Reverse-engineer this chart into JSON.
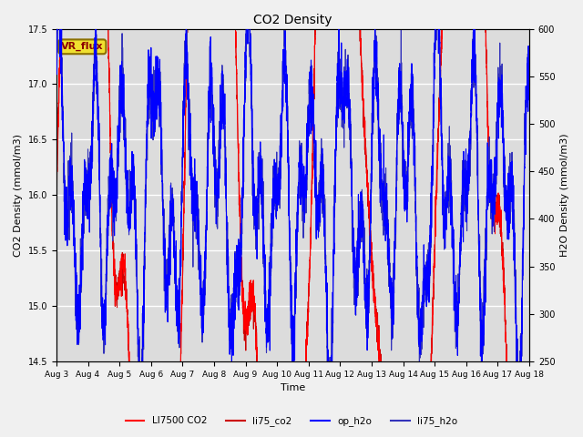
{
  "title": "CO2 Density",
  "xlabel": "Time",
  "ylabel_left": "CO2 Density (mmol/m3)",
  "ylabel_right": "H2O Density (mmol/m3)",
  "ylim_left": [
    14.5,
    17.5
  ],
  "ylim_right": [
    250,
    600
  ],
  "xtick_labels": [
    "Aug 3",
    "Aug 4",
    "Aug 5",
    "Aug 6",
    "Aug 7",
    "Aug 8",
    "Aug 9",
    "Aug 10",
    "Aug 11",
    "Aug 12",
    "Aug 13",
    "Aug 14",
    "Aug 15",
    "Aug 16",
    "Aug 17",
    "Aug 18"
  ],
  "annotation_text": "VR_flux",
  "legend_labels": [
    "LI7500 CO2",
    "li75_co2",
    "op_h2o",
    "li75_h2o"
  ],
  "co2_color1": "#ff0000",
  "co2_color2": "#cc0000",
  "h2o_color1": "#0000ff",
  "h2o_color2": "#3333bb",
  "bg_color": "#dcdcdc",
  "fig_bg": "#f0f0f0",
  "grid_color": "#ffffff",
  "yleft_ticks": [
    14.5,
    15.0,
    15.5,
    16.0,
    16.5,
    17.0,
    17.5
  ],
  "yright_ticks": [
    250,
    300,
    350,
    400,
    450,
    500,
    550,
    600
  ]
}
